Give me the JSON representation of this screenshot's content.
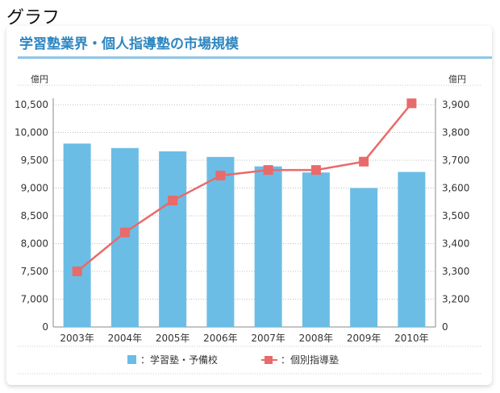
{
  "heading": "グラフ",
  "chart_data": {
    "type": "bar+line",
    "title": "学習塾業界・個人指導塾の市場規模",
    "categories": [
      "2003年",
      "2004年",
      "2005年",
      "2006年",
      "2007年",
      "2008年",
      "2009年",
      "2010年"
    ],
    "left_axis": {
      "unit": "億円",
      "tick_labels": [
        "10,500",
        "10,000",
        "9,500",
        "9,000",
        "8,500",
        "8,000",
        "7,500",
        "7,000",
        "0"
      ],
      "ticks": [
        10500,
        10000,
        9500,
        9000,
        8500,
        8000,
        7500,
        7000
      ]
    },
    "right_axis": {
      "unit": "億円",
      "tick_labels": [
        "3,900",
        "3,800",
        "3,700",
        "3,600",
        "3,500",
        "3,400",
        "3,300",
        "3,200",
        "0"
      ],
      "ticks": [
        3900,
        3800,
        3700,
        3600,
        3500,
        3400,
        3300,
        3200
      ]
    },
    "series": [
      {
        "name": "：学習塾・予備校",
        "type": "bar",
        "axis": "left",
        "color": "#6bbde6",
        "values": [
          9800,
          9720,
          9660,
          9560,
          9390,
          9280,
          9000,
          9290
        ]
      },
      {
        "name": "：個別指導塾",
        "type": "line",
        "axis": "right",
        "color": "#e96a6a",
        "values": [
          3300,
          3440,
          3555,
          3645,
          3665,
          3665,
          3695,
          3905
        ]
      }
    ],
    "grid": true,
    "legend": "bottom"
  }
}
